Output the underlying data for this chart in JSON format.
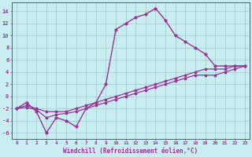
{
  "background_color": "#c8eef0",
  "grid_color": "#a8cdd0",
  "line_color": "#993399",
  "xlabel": "Windchill (Refroidissement éolien,°C)",
  "xlim": [
    -0.5,
    23.5
  ],
  "ylim": [
    -7,
    15.5
  ],
  "xticks": [
    0,
    1,
    2,
    3,
    4,
    5,
    6,
    7,
    8,
    9,
    10,
    11,
    12,
    13,
    14,
    15,
    16,
    17,
    18,
    19,
    20,
    21,
    22,
    23
  ],
  "yticks": [
    -6,
    -4,
    -2,
    0,
    2,
    4,
    6,
    8,
    10,
    12,
    14
  ],
  "curve1_x": [
    0,
    1,
    2,
    3,
    4,
    5,
    6,
    7,
    8,
    9,
    10,
    11,
    12,
    13,
    14,
    15,
    16,
    17,
    18,
    19,
    20,
    21,
    22,
    23
  ],
  "curve1_y": [
    -2,
    -1,
    -2.5,
    -6,
    -3.5,
    -4,
    -5,
    -2,
    -1,
    2,
    11,
    12,
    13,
    13.5,
    14.5,
    12.5,
    10,
    9,
    8,
    7,
    5,
    5,
    5,
    5
  ],
  "curve2_x": [
    0,
    1,
    2,
    3,
    4,
    5,
    6,
    7,
    8,
    9,
    10,
    11,
    12,
    13,
    14,
    15,
    16,
    17,
    18,
    19,
    20,
    21,
    22,
    23
  ],
  "curve2_y": [
    -2,
    -1,
    -2.5,
    -6,
    -3.5,
    -4,
    -5,
    -2,
    -1,
    2,
    11,
    12,
    13,
    13.5,
    14.5,
    12.5,
    10,
    9,
    8,
    7,
    5,
    5,
    5,
    5
  ],
  "curve3_x": [
    0,
    1,
    2,
    3,
    4,
    5,
    6,
    7,
    8,
    9,
    10,
    11,
    12,
    13,
    14,
    15,
    16,
    17,
    18,
    19,
    20,
    21,
    22,
    23
  ],
  "curve3_y": [
    -2,
    -1.5,
    -2,
    -2.5,
    -2.5,
    -2.5,
    -2,
    -1.5,
    -1,
    -0.5,
    0,
    0.5,
    1,
    1.5,
    2,
    2.5,
    3,
    3.5,
    4,
    4.5,
    4.5,
    4.5,
    5,
    5
  ],
  "curve4_x": [
    0,
    1,
    2,
    3,
    4,
    5,
    6,
    7,
    8,
    9,
    10,
    11,
    12,
    13,
    14,
    15,
    16,
    17,
    18,
    19,
    20,
    21,
    22,
    23
  ],
  "curve4_y": [
    -2,
    -1.8,
    -2.2,
    -3.5,
    -3,
    -2.8,
    -2.5,
    -2,
    -1.5,
    -1,
    -0.5,
    0,
    0.5,
    1,
    1.5,
    2,
    2.5,
    3,
    3.5,
    3.5,
    3.5,
    4,
    4.5,
    5
  ],
  "curve5_x": [
    0,
    23
  ],
  "curve5_y": [
    -2,
    5
  ]
}
